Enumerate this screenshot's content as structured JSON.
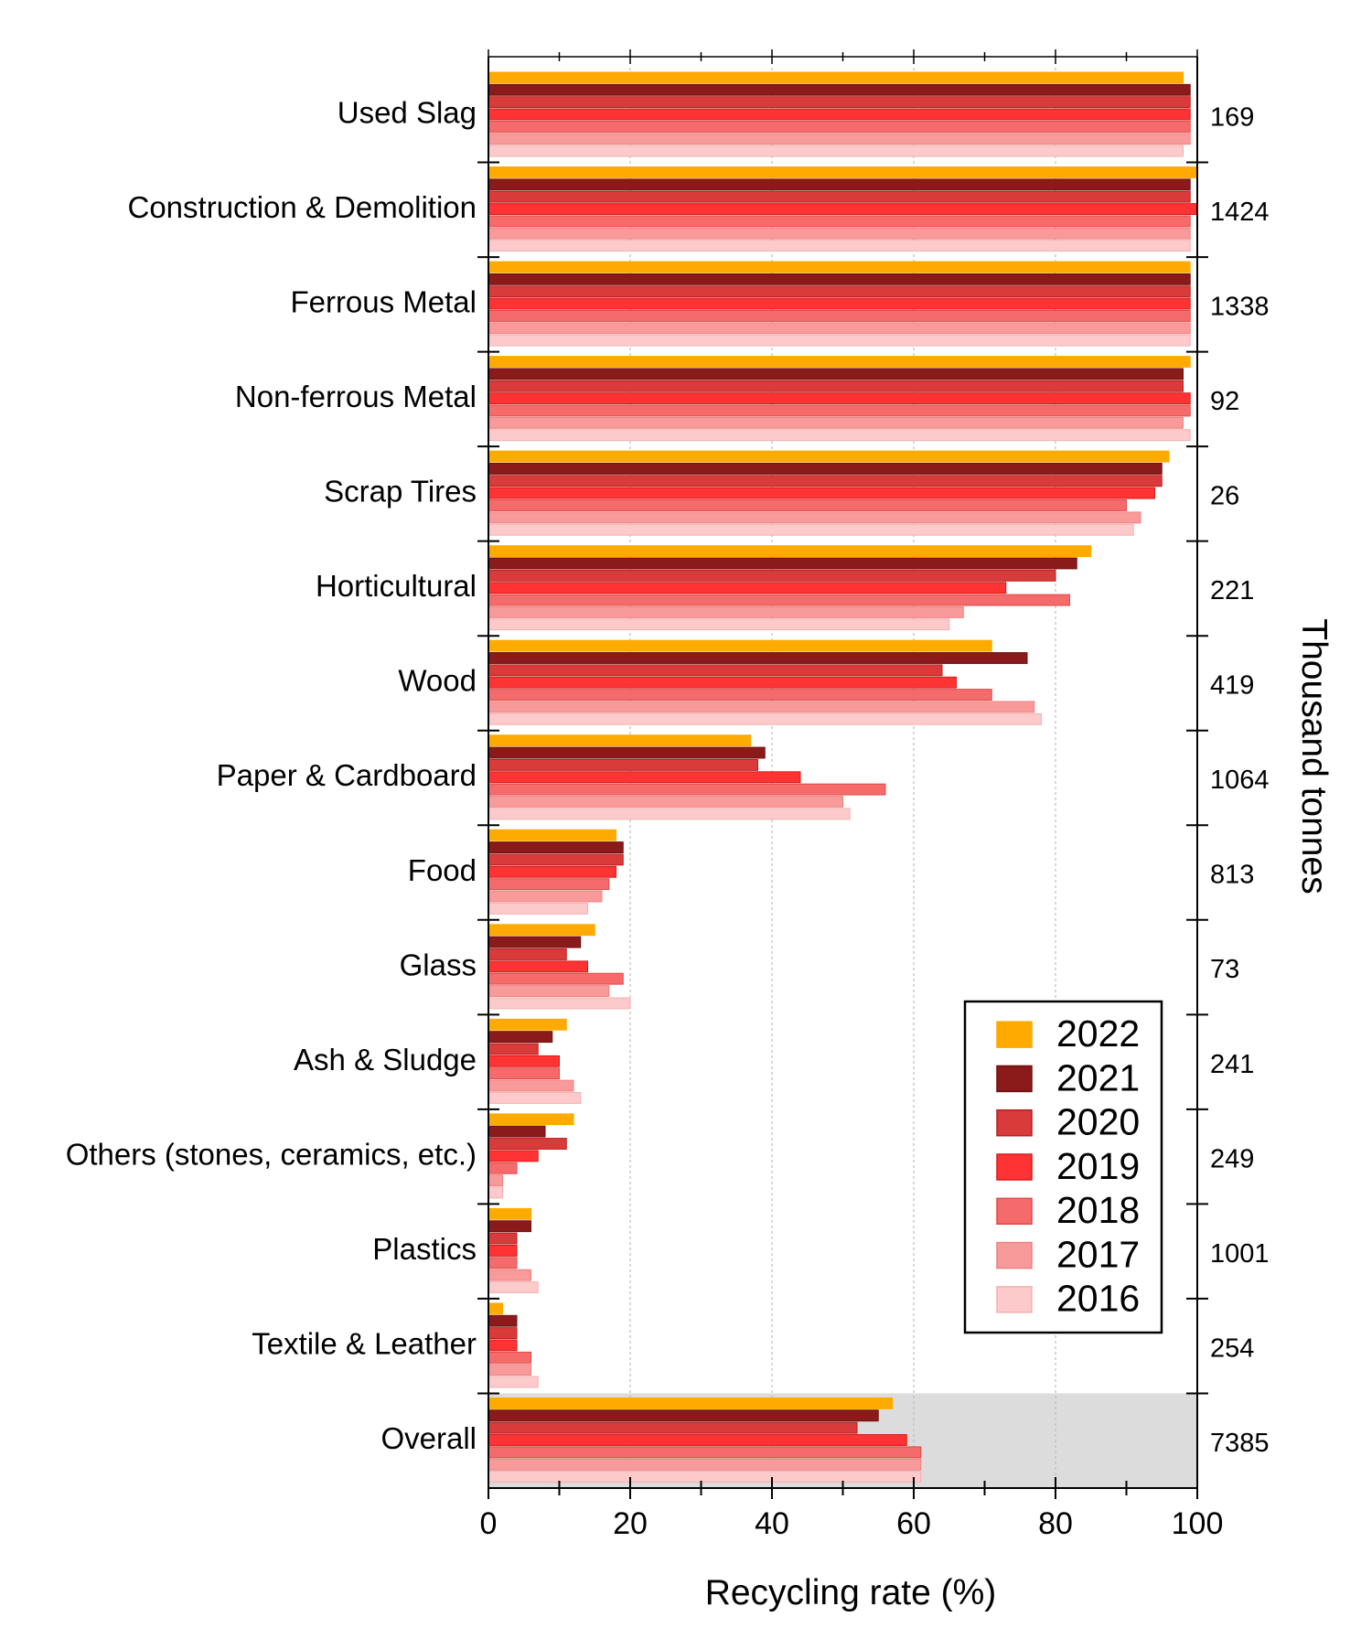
{
  "chart_data": {
    "type": "bar",
    "orientation": "horizontal",
    "xlabel": "Recycling rate (%)",
    "right_axis_label": "Thousand tonnes",
    "xlim": [
      0,
      100
    ],
    "xticks": [
      0,
      20,
      40,
      60,
      80,
      100
    ],
    "grid": true,
    "legend_position": "lower-right",
    "highlighted_category": "Overall",
    "categories": [
      "Used Slag",
      "Construction & Demolition",
      "Ferrous Metal",
      "Non-ferrous Metal",
      "Scrap Tires",
      "Horticultural",
      "Wood",
      "Paper & Cardboard",
      "Food",
      "Glass",
      "Ash & Sludge",
      "Others (stones, ceramics, etc.)",
      "Plastics",
      "Textile & Leather",
      "Overall"
    ],
    "thousand_tonnes": [
      "169",
      "1424",
      "1338",
      "92",
      "26",
      "221",
      "419",
      "1064",
      "813",
      "73",
      "241",
      "249",
      "1001",
      "254",
      "7385"
    ],
    "series": [
      {
        "name": "2022",
        "color": "#FFAA00",
        "border": "#FFAA00",
        "values": [
          98,
          100,
          99,
          99,
          96,
          85,
          71,
          37,
          18,
          15,
          11,
          12,
          6,
          2,
          57
        ]
      },
      {
        "name": "2021",
        "color": "#8B1A1A",
        "border": "#6E1010",
        "values": [
          99,
          99,
          99,
          98,
          95,
          83,
          76,
          39,
          19,
          13,
          9,
          8,
          6,
          4,
          55
        ]
      },
      {
        "name": "2020",
        "color": "#D93B3B",
        "border": "#B51F1F",
        "values": [
          99,
          99,
          99,
          98,
          95,
          80,
          64,
          38,
          19,
          11,
          7,
          11,
          4,
          4,
          52
        ]
      },
      {
        "name": "2019",
        "color": "#FF3333",
        "border": "#D61A1A",
        "values": [
          99,
          100,
          99,
          99,
          94,
          73,
          66,
          44,
          18,
          14,
          10,
          7,
          4,
          4,
          59
        ]
      },
      {
        "name": "2018",
        "color": "#F56B6B",
        "border": "#E04848",
        "values": [
          99,
          99,
          99,
          99,
          90,
          82,
          71,
          56,
          17,
          19,
          10,
          4,
          4,
          6,
          61
        ]
      },
      {
        "name": "2017",
        "color": "#F99A9A",
        "border": "#EF8080",
        "values": [
          99,
          99,
          99,
          98,
          92,
          67,
          77,
          50,
          16,
          17,
          12,
          2,
          6,
          6,
          61
        ]
      },
      {
        "name": "2016",
        "color": "#FCCACA",
        "border": "#F5B0B0",
        "values": [
          98,
          99,
          99,
          99,
          91,
          65,
          78,
          51,
          14,
          20,
          13,
          2,
          7,
          7,
          61
        ]
      }
    ]
  }
}
